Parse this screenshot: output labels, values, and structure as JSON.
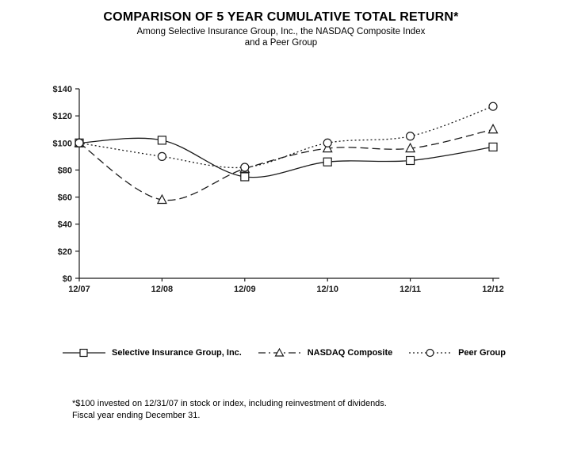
{
  "title": "COMPARISON OF 5 YEAR CUMULATIVE TOTAL RETURN*",
  "subtitle_line1": "Among Selective Insurance Group, Inc., the NASDAQ Composite Index",
  "subtitle_line2": "and a Peer Group",
  "chart_data": {
    "type": "line",
    "categories": [
      "12/07",
      "12/08",
      "12/09",
      "12/10",
      "12/11",
      "12/12"
    ],
    "series": [
      {
        "name": "Selective Insurance Group, Inc.",
        "marker": "square",
        "line_style": "solid",
        "values": [
          100,
          102,
          75,
          86,
          87,
          97
        ]
      },
      {
        "name": "NASDAQ Composite",
        "marker": "triangle",
        "line_style": "dashed",
        "values": [
          100,
          58,
          81,
          96,
          96,
          110
        ]
      },
      {
        "name": "Peer Group",
        "marker": "circle",
        "line_style": "dotted",
        "values": [
          100,
          90,
          82,
          100,
          105,
          127
        ]
      }
    ],
    "ylim": [
      0,
      140
    ],
    "ytick_step": 20,
    "ytick_labels": [
      "$0",
      "$20",
      "$40",
      "$60",
      "$80",
      "$100",
      "$120",
      "$140"
    ],
    "grid": false,
    "legend_position": "bottom"
  },
  "footnote_line1": "*$100 invested on 12/31/07 in stock or index, including reinvestment of dividends.",
  "footnote_line2": "Fiscal year ending December 31.",
  "colors": {
    "ink": "#1a1a1a",
    "marker_fill": "#ffffff",
    "background": "#ffffff"
  }
}
